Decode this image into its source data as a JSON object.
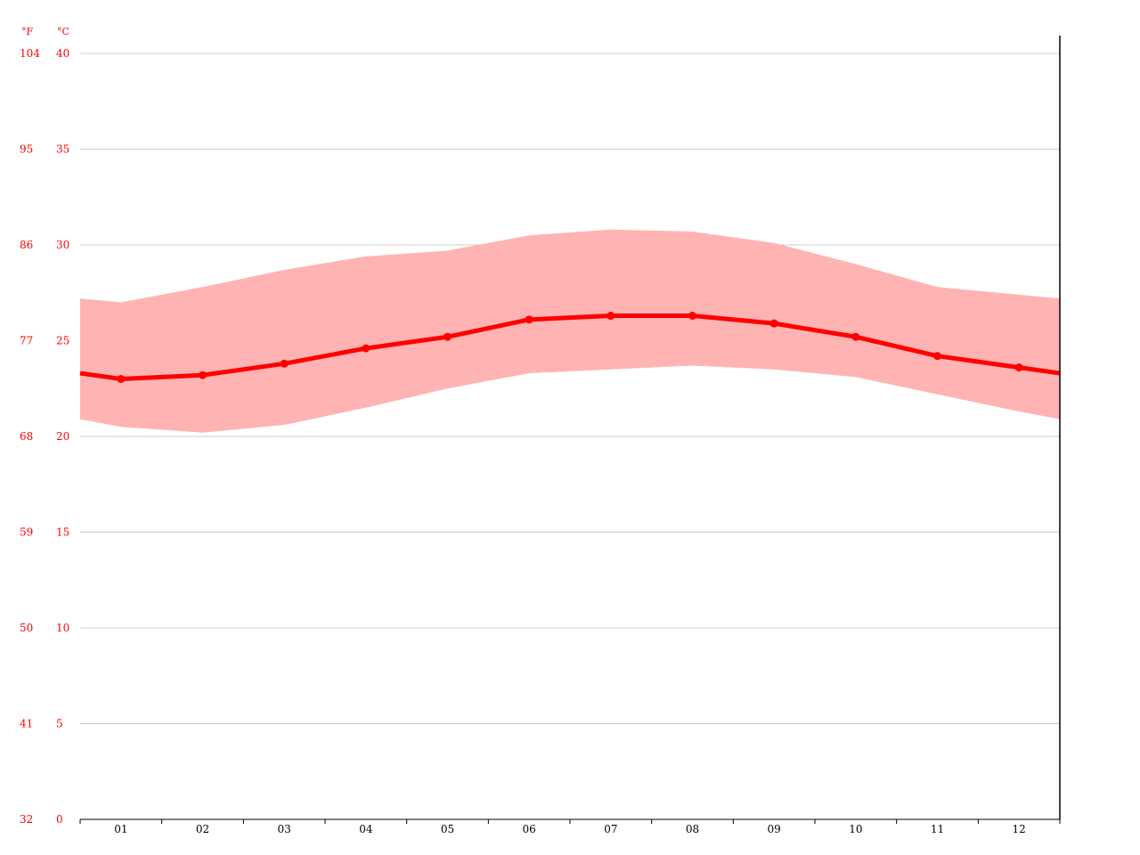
{
  "chart_data": {
    "type": "area",
    "title": "",
    "xlabel": "",
    "ylabel": "",
    "y_unit_primary": "°C",
    "y_unit_secondary": "°F",
    "categories": [
      "01",
      "02",
      "03",
      "04",
      "05",
      "06",
      "07",
      "08",
      "09",
      "10",
      "11",
      "12"
    ],
    "series": [
      {
        "style": "line",
        "values": [
          23.0,
          23.2,
          23.8,
          24.6,
          25.2,
          26.1,
          26.3,
          26.3,
          25.9,
          25.2,
          24.2,
          23.6
        ],
        "color": "#ff0000"
      },
      {
        "style": "band",
        "low": [
          20.5,
          20.2,
          20.6,
          21.5,
          22.5,
          23.3,
          23.5,
          23.7,
          23.5,
          23.1,
          22.2,
          21.3
        ],
        "high": [
          27.0,
          27.8,
          28.7,
          29.4,
          29.7,
          30.5,
          30.8,
          30.7,
          30.1,
          29.0,
          27.8,
          27.4
        ],
        "color": "#ffb3b3"
      }
    ],
    "edge_values": {
      "line": [
        23.3,
        23.3
      ],
      "low": [
        20.9,
        20.9
      ],
      "high": [
        27.2,
        27.2
      ]
    },
    "ylim": [
      0,
      40
    ],
    "yticks_c": [
      "0",
      "5",
      "10",
      "15",
      "20",
      "25",
      "30",
      "35",
      "40"
    ],
    "yticks_f": [
      "32",
      "41",
      "50",
      "59",
      "68",
      "77",
      "86",
      "95",
      "104"
    ],
    "grid": true,
    "colors": {
      "axis_text_y": "#ff0000",
      "axis_text_x": "#000000",
      "grid": "#cccccc",
      "axis": "#000000"
    }
  }
}
